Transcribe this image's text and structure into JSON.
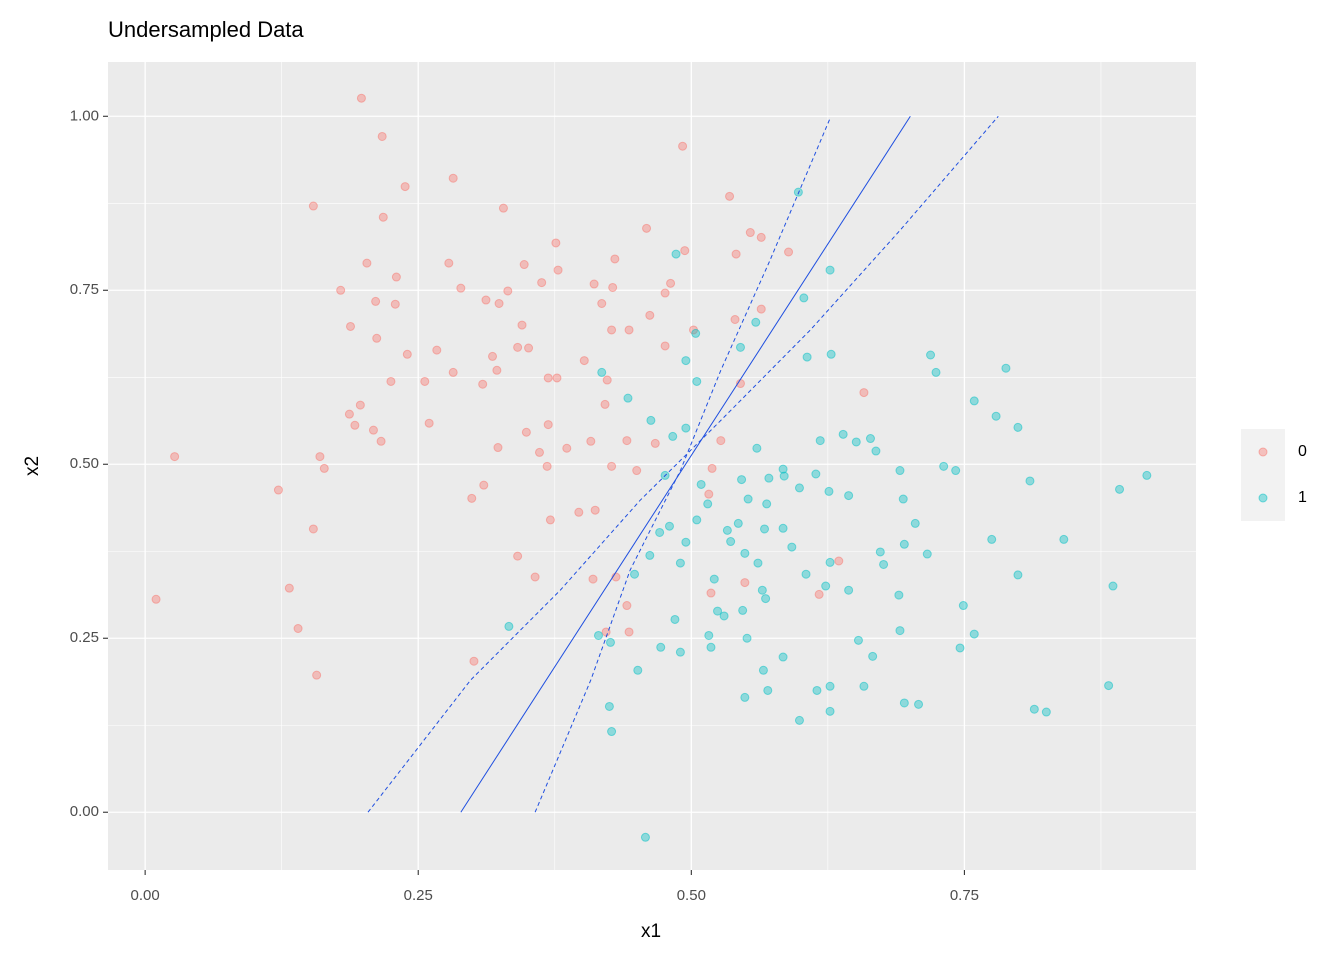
{
  "chart_data": {
    "type": "scatter",
    "title": "Undersampled Data",
    "x_label": "x1",
    "y_label": "x2",
    "xlim": [
      -0.034,
      0.962
    ],
    "ylim": [
      -0.083,
      1.078
    ],
    "xticks": [
      {
        "value": 0,
        "label": "0.00"
      },
      0.25,
      {
        "value": 0.5,
        "label": "0.50"
      },
      0.75
    ],
    "yticks": [
      {
        "value": 0,
        "label": "0.00"
      },
      0.25,
      {
        "value": 0.5,
        "label": "0.50"
      },
      0.75,
      {
        "value": 1,
        "label": "1.00"
      }
    ],
    "xminor": [
      0.125,
      0.375,
      0.625,
      0.875
    ],
    "yminor": [
      0.125,
      0.375,
      0.625,
      0.875
    ],
    "grid": true,
    "legend": "right",
    "series": [
      {
        "name": "0",
        "color": "#F8766D",
        "x": [
          0.198,
          0.217,
          0.154,
          0.238,
          0.282,
          0.218,
          0.328,
          0.203,
          0.23,
          0.179,
          0.211,
          0.188,
          0.212,
          0.229,
          0.278,
          0.289,
          0.312,
          0.324,
          0.332,
          0.347,
          0.376,
          0.378,
          0.363,
          0.341,
          0.345,
          0.318,
          0.267,
          0.256,
          0.225,
          0.197,
          0.187,
          0.192,
          0.209,
          0.216,
          0.16,
          0.122,
          0.164,
          0.154,
          0.027,
          0.01,
          0.132,
          0.14,
          0.157,
          0.26,
          0.282,
          0.24,
          0.309,
          0.322,
          0.351,
          0.369,
          0.377,
          0.402,
          0.423,
          0.323,
          0.349,
          0.361,
          0.299,
          0.31,
          0.369,
          0.368,
          0.371,
          0.357,
          0.341,
          0.386,
          0.397,
          0.408,
          0.411,
          0.418,
          0.427,
          0.443,
          0.462,
          0.43,
          0.428,
          0.459,
          0.492,
          0.494,
          0.481,
          0.476,
          0.502,
          0.535,
          0.541,
          0.554,
          0.564,
          0.54,
          0.564,
          0.589,
          0.545,
          0.519,
          0.527,
          0.516,
          0.518,
          0.549,
          0.476,
          0.467,
          0.441,
          0.427,
          0.45,
          0.421,
          0.412,
          0.41,
          0.431,
          0.441,
          0.443,
          0.422,
          0.301,
          0.617,
          0.658,
          0.635
        ],
        "values": [
          1.026,
          0.971,
          0.871,
          0.899,
          0.911,
          0.855,
          0.868,
          0.789,
          0.769,
          0.75,
          0.734,
          0.698,
          0.681,
          0.73,
          0.789,
          0.753,
          0.736,
          0.731,
          0.749,
          0.787,
          0.818,
          0.779,
          0.761,
          0.668,
          0.7,
          0.655,
          0.664,
          0.619,
          0.619,
          0.585,
          0.572,
          0.556,
          0.549,
          0.533,
          0.511,
          0.463,
          0.494,
          0.407,
          0.511,
          0.306,
          0.322,
          0.264,
          0.197,
          0.559,
          0.632,
          0.658,
          0.615,
          0.635,
          0.667,
          0.624,
          0.624,
          0.649,
          0.621,
          0.524,
          0.546,
          0.517,
          0.451,
          0.47,
          0.557,
          0.497,
          0.42,
          0.338,
          0.368,
          0.523,
          0.431,
          0.533,
          0.759,
          0.731,
          0.693,
          0.693,
          0.714,
          0.795,
          0.754,
          0.839,
          0.957,
          0.807,
          0.76,
          0.746,
          0.693,
          0.885,
          0.802,
          0.833,
          0.826,
          0.708,
          0.723,
          0.805,
          0.616,
          0.494,
          0.534,
          0.457,
          0.315,
          0.33,
          0.67,
          0.53,
          0.534,
          0.497,
          0.491,
          0.586,
          0.434,
          0.335,
          0.338,
          0.297,
          0.259,
          0.259,
          0.217,
          0.313,
          0.603,
          0.361
        ]
      },
      {
        "name": "1",
        "color": "#00BFC4",
        "x": [
          0.598,
          0.486,
          0.545,
          0.628,
          0.603,
          0.627,
          0.606,
          0.559,
          0.504,
          0.495,
          0.505,
          0.495,
          0.442,
          0.418,
          0.463,
          0.476,
          0.483,
          0.509,
          0.56,
          0.571,
          0.584,
          0.599,
          0.614,
          0.618,
          0.639,
          0.651,
          0.664,
          0.669,
          0.691,
          0.719,
          0.724,
          0.731,
          0.759,
          0.788,
          0.779,
          0.799,
          0.81,
          0.841,
          0.892,
          0.917,
          0.742,
          0.644,
          0.626,
          0.585,
          0.546,
          0.552,
          0.569,
          0.543,
          0.533,
          0.515,
          0.505,
          0.495,
          0.49,
          0.48,
          0.471,
          0.462,
          0.448,
          0.521,
          0.536,
          0.549,
          0.561,
          0.567,
          0.584,
          0.592,
          0.605,
          0.627,
          0.644,
          0.623,
          0.565,
          0.568,
          0.547,
          0.524,
          0.516,
          0.49,
          0.485,
          0.426,
          0.425,
          0.427,
          0.458,
          0.451,
          0.472,
          0.518,
          0.53,
          0.551,
          0.566,
          0.57,
          0.584,
          0.599,
          0.615,
          0.627,
          0.627,
          0.658,
          0.653,
          0.666,
          0.691,
          0.69,
          0.676,
          0.695,
          0.705,
          0.694,
          0.716,
          0.759,
          0.749,
          0.746,
          0.695,
          0.708,
          0.814,
          0.825,
          0.882,
          0.886,
          0.799,
          0.775,
          0.673,
          0.549,
          0.333,
          0.415
        ],
        "values": [
          0.891,
          0.802,
          0.668,
          0.658,
          0.739,
          0.779,
          0.654,
          0.704,
          0.688,
          0.649,
          0.619,
          0.552,
          0.595,
          0.632,
          0.563,
          0.484,
          0.54,
          0.471,
          0.523,
          0.48,
          0.493,
          0.466,
          0.486,
          0.534,
          0.543,
          0.532,
          0.537,
          0.519,
          0.491,
          0.657,
          0.632,
          0.497,
          0.591,
          0.638,
          0.569,
          0.553,
          0.476,
          0.392,
          0.464,
          0.484,
          0.491,
          0.455,
          0.461,
          0.483,
          0.478,
          0.45,
          0.443,
          0.415,
          0.405,
          0.443,
          0.42,
          0.388,
          0.358,
          0.411,
          0.402,
          0.369,
          0.342,
          0.335,
          0.389,
          0.372,
          0.358,
          0.407,
          0.408,
          0.381,
          0.342,
          0.359,
          0.319,
          0.325,
          0.319,
          0.307,
          0.29,
          0.289,
          0.254,
          0.23,
          0.277,
          0.244,
          0.152,
          0.116,
          -0.036,
          0.204,
          0.237,
          0.237,
          0.282,
          0.25,
          0.204,
          0.175,
          0.223,
          0.132,
          0.175,
          0.181,
          0.145,
          0.181,
          0.247,
          0.224,
          0.261,
          0.312,
          0.356,
          0.385,
          0.415,
          0.45,
          0.371,
          0.256,
          0.297,
          0.236,
          0.157,
          0.155,
          0.148,
          0.144,
          0.182,
          0.325,
          0.341,
          0.392,
          0.374,
          0.165,
          0.267,
          0.254
        ]
      }
    ],
    "lines": [
      {
        "style": "solid",
        "color": "#1f4fe0",
        "x": [
          0.289,
          0.7005
        ],
        "y": [
          0,
          1.0
        ]
      },
      {
        "style": "dashed",
        "color": "#1f4fe0",
        "x": [
          0.204,
          0.298,
          0.38,
          0.453,
          0.527,
          0.609,
          0.691,
          0.781
        ],
        "y": [
          0,
          0.19,
          0.319,
          0.448,
          0.563,
          0.693,
          0.836,
          1.0
        ]
      },
      {
        "style": "dashed",
        "color": "#1f4fe0",
        "x": [
          0.357,
          0.408,
          0.444,
          0.49,
          0.527,
          0.572,
          0.627
        ],
        "y": [
          0,
          0.19,
          0.348,
          0.491,
          0.635,
          0.793,
          0.997
        ]
      }
    ]
  }
}
